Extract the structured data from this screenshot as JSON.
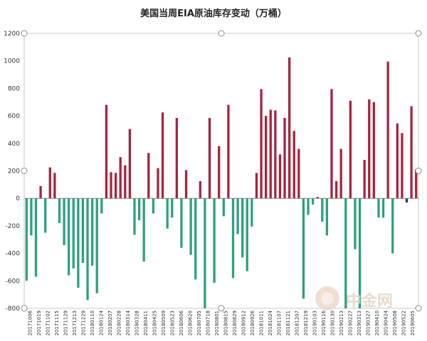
{
  "chart_data": {
    "type": "bar",
    "title": "美国当周EIA原油库存变动（万桶）",
    "ylim": [
      -800,
      1200
    ],
    "yticks": [
      1200,
      1000,
      800,
      600,
      400,
      200,
      0,
      -200,
      -400,
      -600,
      -800
    ],
    "grid": false,
    "legend": "none",
    "colors": {
      "positive": "#a5243f",
      "negative": "#2e9f80",
      "dark": "#25355f"
    },
    "xtick_labels": [
      "20171006",
      "20171019",
      "20171102",
      "20171115",
      "20171129",
      "20171213",
      "20171229",
      "20180110",
      "20180124",
      "20180207",
      "20180228",
      "20180314",
      "20180328",
      "20180411",
      "20180425",
      "20180509",
      "20180523",
      "20180606",
      "20180620",
      "20180705",
      "20180718",
      "20180801",
      "20180815",
      "20180829",
      "20180912",
      "20180926",
      "20181011",
      "20181024",
      "20181107",
      "20181121",
      "20181207",
      "20181219",
      "20190103",
      "20190116",
      "20190130",
      "20190213",
      "20190227",
      "20190313",
      "20190327",
      "20190410",
      "20190424",
      "20190508",
      "20190522",
      "20190605"
    ],
    "values": [
      -600,
      -270,
      -570,
      90,
      -250,
      225,
      185,
      -180,
      -340,
      -560,
      -510,
      -650,
      -470,
      -740,
      -490,
      -690,
      -110,
      680,
      190,
      185,
      300,
      240,
      505,
      -265,
      -160,
      -460,
      330,
      -110,
      220,
      625,
      -220,
      -140,
      585,
      -360,
      205,
      -410,
      -590,
      125,
      -800,
      585,
      -615,
      380,
      -130,
      680,
      -580,
      -260,
      -430,
      -530,
      -205,
      185,
      795,
      600,
      645,
      640,
      320,
      585,
      1025,
      490,
      360,
      -730,
      -120,
      -45,
      10,
      -170,
      -270,
      795,
      125,
      360,
      -800,
      710,
      -370,
      -800,
      280,
      720,
      700,
      -140,
      -140,
      995,
      -400,
      545,
      475,
      -30,
      670,
      210
    ],
    "dark_index": 81
  },
  "watermark_text": "中金网"
}
